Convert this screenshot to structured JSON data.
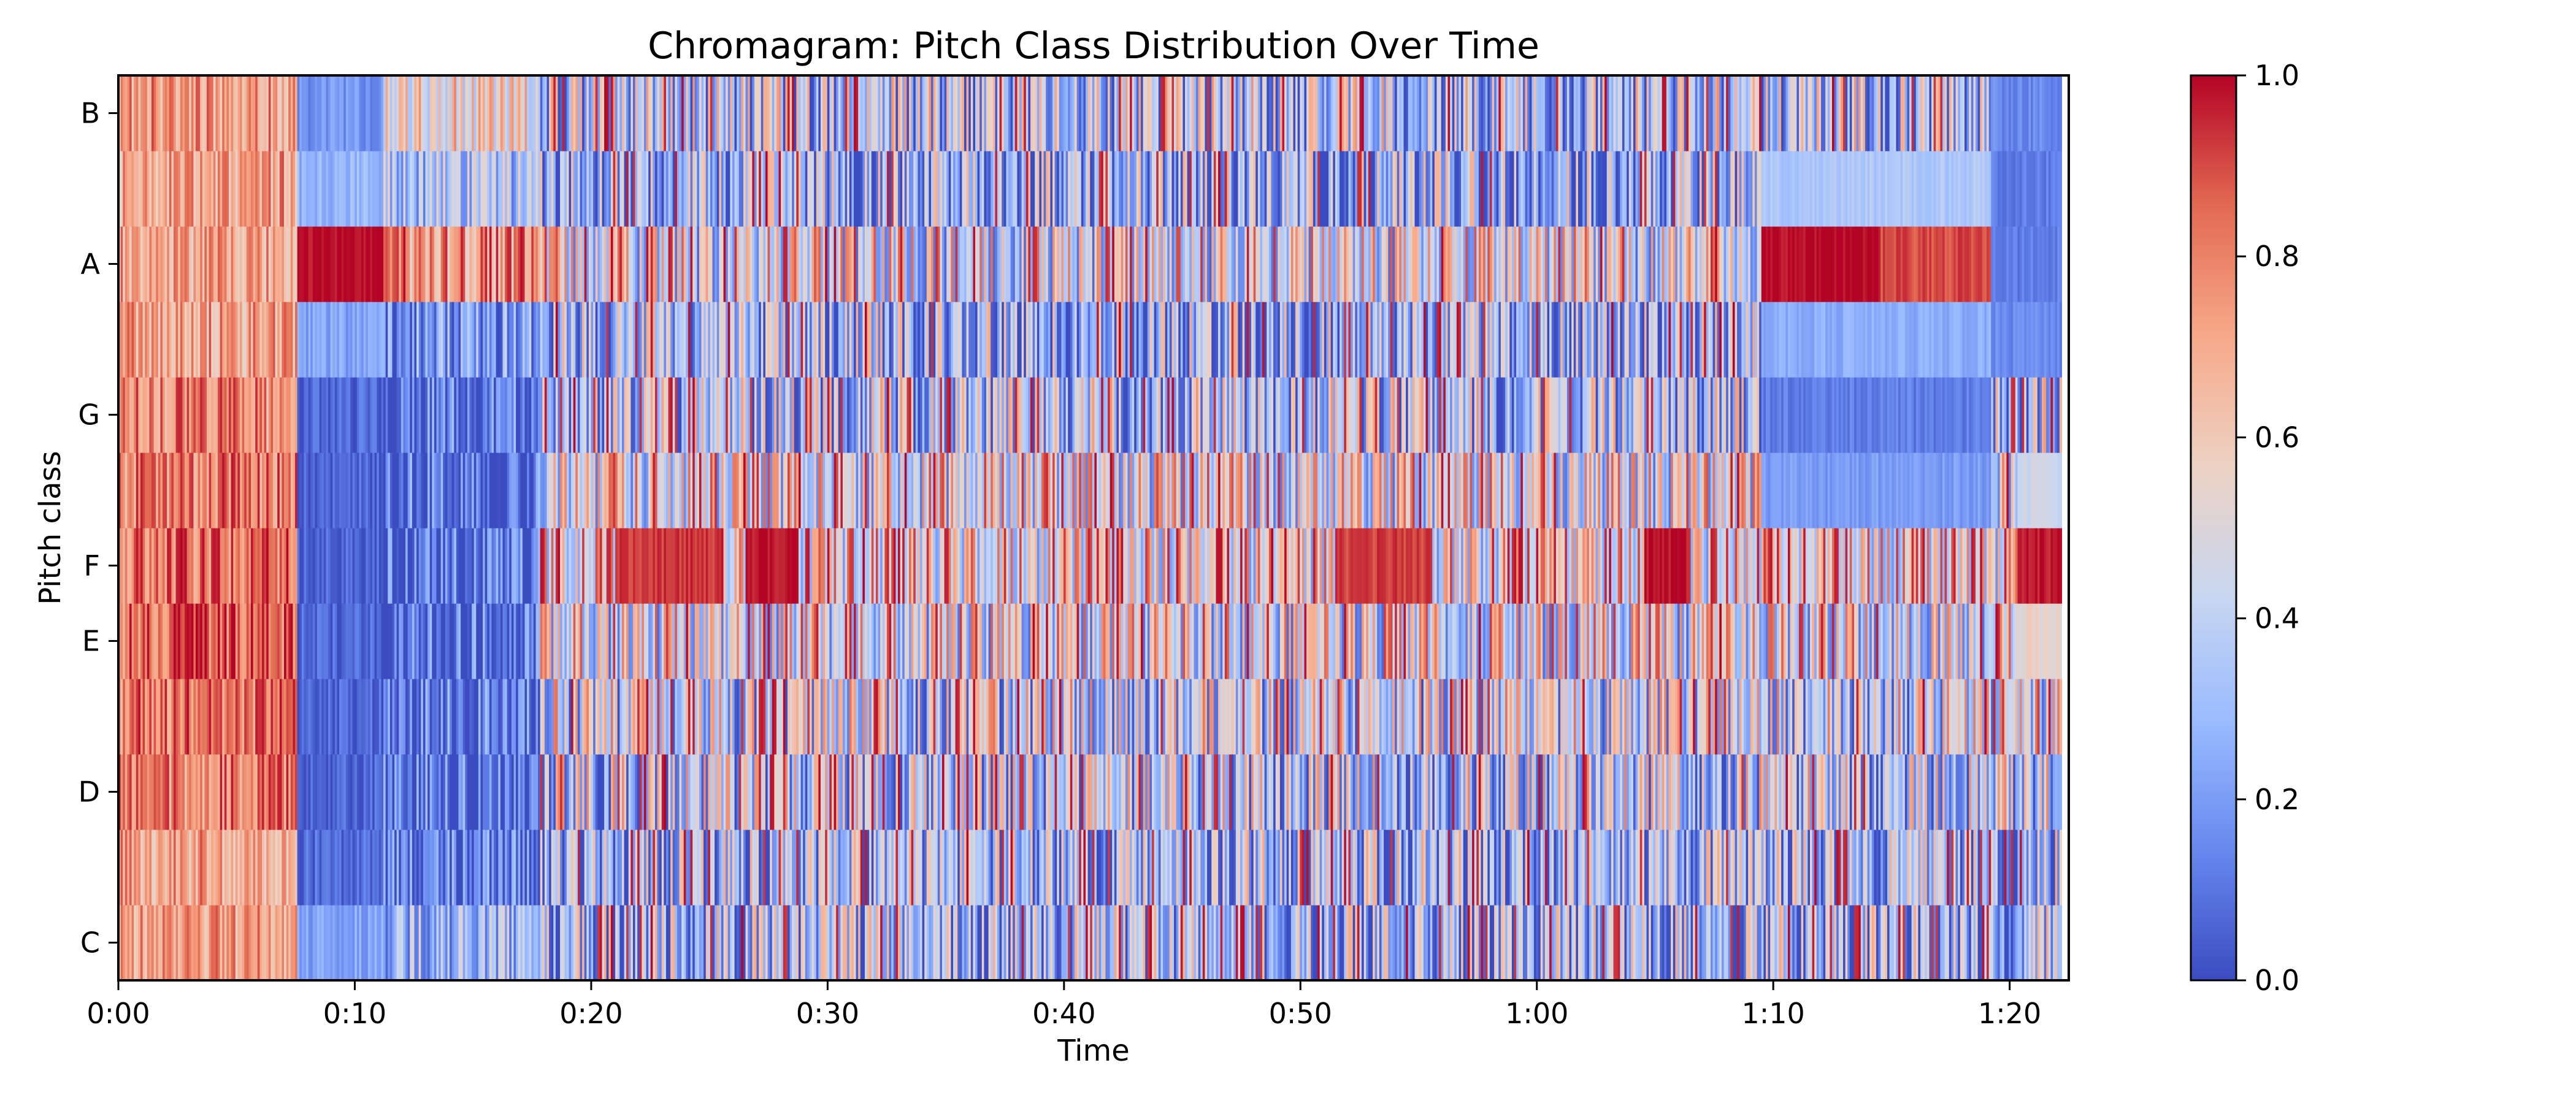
{
  "chart_data": {
    "type": "heatmap",
    "title": "Chromagram: Pitch Class Distribution Over Time",
    "xlabel": "Time",
    "ylabel": "Pitch class",
    "x_unit": "seconds",
    "xlim": [
      0,
      82.5
    ],
    "x_ticks": [
      0,
      10,
      20,
      30,
      40,
      50,
      60,
      70,
      80
    ],
    "x_tick_labels": [
      "0:00",
      "0:10",
      "0:20",
      "0:30",
      "0:40",
      "0:50",
      "1:00",
      "1:10",
      "1:20"
    ],
    "rows": [
      "C",
      "C#",
      "D",
      "D#",
      "E",
      "F",
      "F#",
      "G",
      "G#",
      "A",
      "A#",
      "B"
    ],
    "y_tick_labels": [
      {
        "row": "C",
        "label": "C"
      },
      {
        "row": "D",
        "label": "D"
      },
      {
        "row": "E",
        "label": "E"
      },
      {
        "row": "F",
        "label": "F"
      },
      {
        "row": "G",
        "label": "G"
      },
      {
        "row": "A",
        "label": "A"
      },
      {
        "row": "B",
        "label": "B"
      }
    ],
    "colormap": "coolwarm",
    "colormap_stops": [
      "#3b4cc0",
      "#6788ee",
      "#9abbff",
      "#c9d7f0",
      "#edd1c2",
      "#f7a889",
      "#e26952",
      "#b40426"
    ],
    "value_range": [
      0,
      1
    ],
    "colorbar_ticks": [
      0.0,
      0.2,
      0.4,
      0.6,
      0.8,
      1.0
    ],
    "colorbar_tick_labels": [
      "0.0",
      "0.2",
      "0.4",
      "0.6",
      "0.8",
      "1.0"
    ],
    "segments": [
      {
        "start": 0,
        "end": 7.6,
        "levels": {
          "C": 0.72,
          "C#": 0.72,
          "D": 0.8,
          "D#": 0.82,
          "E": 0.85,
          "F": 0.83,
          "F#": 0.8,
          "G": 0.78,
          "G#": 0.72,
          "A": 0.7,
          "A#": 0.72,
          "B": 0.74
        },
        "spread": 0.18
      },
      {
        "start": 7.6,
        "end": 11.2,
        "levels": {
          "C": 0.22,
          "C#": 0.08,
          "D": 0.06,
          "D#": 0.06,
          "E": 0.06,
          "F": 0.05,
          "F#": 0.05,
          "G": 0.06,
          "G#": 0.22,
          "A": 0.96,
          "A#": 0.28,
          "B": 0.18
        },
        "spread": 0.08
      },
      {
        "start": 11.2,
        "end": 17.8,
        "levels": {
          "C": 0.3,
          "C#": 0.1,
          "D": 0.08,
          "D#": 0.08,
          "E": 0.07,
          "F": 0.07,
          "F#": 0.08,
          "G": 0.08,
          "G#": 0.2,
          "A": 0.75,
          "A#": 0.35,
          "B": 0.55
        },
        "spread": 0.25
      },
      {
        "start": 17.8,
        "end": 82.2,
        "levels": {
          "C": 0.3,
          "C#": 0.3,
          "D": 0.38,
          "D#": 0.42,
          "E": 0.48,
          "F": 0.58,
          "F#": 0.5,
          "G": 0.35,
          "G#": 0.3,
          "A": 0.48,
          "A#": 0.28,
          "B": 0.35
        },
        "spread": 0.42
      }
    ],
    "highlights": [
      {
        "row": "A",
        "start": 7.6,
        "end": 11.2,
        "value": 1.0
      },
      {
        "row": "A",
        "start": 69.5,
        "end": 74.5,
        "value": 1.0
      },
      {
        "row": "A",
        "start": 74.5,
        "end": 79.2,
        "value": 0.9
      },
      {
        "row": "A#",
        "start": 69.5,
        "end": 79.2,
        "value": 0.35
      },
      {
        "row": "G#",
        "start": 69.5,
        "end": 79.2,
        "value": 0.25
      },
      {
        "row": "F",
        "start": 21.0,
        "end": 25.5,
        "value": 0.93
      },
      {
        "row": "F",
        "start": 26.5,
        "end": 28.8,
        "value": 0.98
      },
      {
        "row": "F",
        "start": 51.5,
        "end": 55.5,
        "value": 0.92
      },
      {
        "row": "F",
        "start": 64.5,
        "end": 66.5,
        "value": 0.98
      },
      {
        "row": "F",
        "start": 80.3,
        "end": 82.2,
        "value": 0.98
      },
      {
        "row": "G",
        "start": 69.5,
        "end": 79.2,
        "value": 0.12
      },
      {
        "row": "F#",
        "start": 69.5,
        "end": 79.2,
        "value": 0.2
      },
      {
        "row": "E",
        "start": 80.3,
        "end": 82.2,
        "value": 0.55
      },
      {
        "row": "F#",
        "start": 80.3,
        "end": 82.2,
        "value": 0.45
      },
      {
        "row": "B",
        "start": 79.2,
        "end": 82.2,
        "value": 0.15
      },
      {
        "row": "A#",
        "start": 79.2,
        "end": 82.2,
        "value": 0.12
      },
      {
        "row": "A",
        "start": 79.2,
        "end": 82.2,
        "value": 0.12
      },
      {
        "row": "G#",
        "start": 79.2,
        "end": 82.2,
        "value": 0.15
      }
    ]
  }
}
